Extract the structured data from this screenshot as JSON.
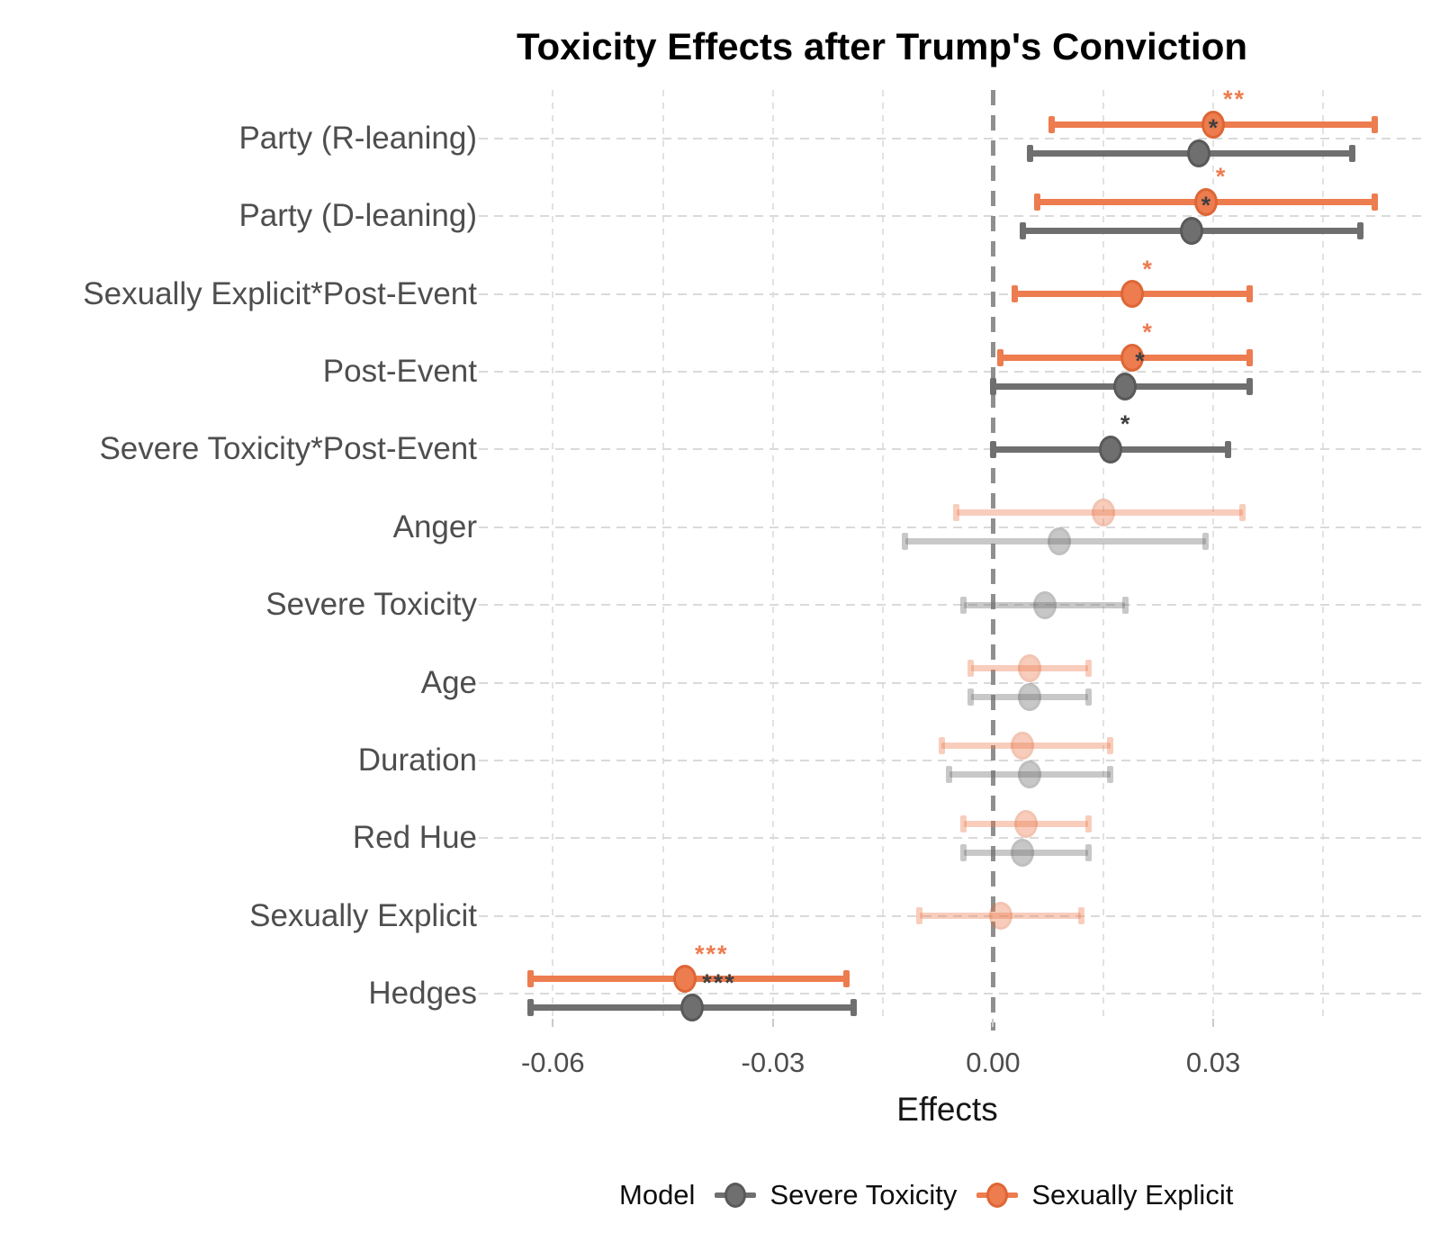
{
  "chart_data": {
    "type": "pointrange",
    "title": "Toxicity Effects after Trump's Conviction",
    "xlabel": "Effects",
    "xlim": [
      -0.0685,
      0.056
    ],
    "grid_values": [
      -0.06,
      -0.045,
      -0.03,
      -0.015,
      0.015,
      0.03,
      0.045
    ],
    "zero_line": 0.0,
    "x_ticks": [
      {
        "value": -0.06,
        "label": "-0.06"
      },
      {
        "value": -0.03,
        "label": "-0.03"
      },
      {
        "value": 0.0,
        "label": "0.00"
      },
      {
        "value": 0.03,
        "label": "0.03"
      }
    ],
    "models": {
      "Severe Toxicity": {
        "color": "#6f6f6f",
        "stroke": "#595959"
      },
      "Sexually Explicit": {
        "color": "#ed7c4f",
        "stroke": "#de6636"
      }
    },
    "faded_opacity": 0.38,
    "rows": [
      {
        "label": "Party (R-leaning)",
        "points": [
          {
            "model": "Sexually Explicit",
            "estimate": 0.03,
            "ci_low": 0.008,
            "ci_high": 0.052,
            "stars": "**",
            "faded": false
          },
          {
            "model": "Severe Toxicity",
            "estimate": 0.028,
            "ci_low": 0.005,
            "ci_high": 0.049,
            "stars": "*",
            "faded": false
          }
        ]
      },
      {
        "label": "Party (D-leaning)",
        "points": [
          {
            "model": "Sexually Explicit",
            "estimate": 0.029,
            "ci_low": 0.006,
            "ci_high": 0.052,
            "stars": "*",
            "faded": false
          },
          {
            "model": "Severe Toxicity",
            "estimate": 0.027,
            "ci_low": 0.004,
            "ci_high": 0.05,
            "stars": "*",
            "faded": false
          }
        ]
      },
      {
        "label": "Sexually Explicit*Post-Event",
        "points": [
          {
            "model": "Sexually Explicit",
            "estimate": 0.019,
            "ci_low": 0.003,
            "ci_high": 0.035,
            "stars": "*",
            "faded": false
          }
        ]
      },
      {
        "label": "Post-Event",
        "points": [
          {
            "model": "Sexually Explicit",
            "estimate": 0.019,
            "ci_low": 0.001,
            "ci_high": 0.035,
            "stars": "*",
            "faded": false
          },
          {
            "model": "Severe Toxicity",
            "estimate": 0.018,
            "ci_low": 0.0,
            "ci_high": 0.035,
            "stars": "*",
            "faded": false
          }
        ]
      },
      {
        "label": "Severe Toxicity*Post-Event",
        "points": [
          {
            "model": "Severe Toxicity",
            "estimate": 0.016,
            "ci_low": 0.0,
            "ci_high": 0.032,
            "stars": "*",
            "faded": false
          }
        ]
      },
      {
        "label": "Anger",
        "points": [
          {
            "model": "Sexually Explicit",
            "estimate": 0.015,
            "ci_low": -0.005,
            "ci_high": 0.034,
            "stars": "",
            "faded": true
          },
          {
            "model": "Severe Toxicity",
            "estimate": 0.009,
            "ci_low": -0.012,
            "ci_high": 0.029,
            "stars": "",
            "faded": true
          }
        ]
      },
      {
        "label": "Severe Toxicity",
        "points": [
          {
            "model": "Severe Toxicity",
            "estimate": 0.007,
            "ci_low": -0.004,
            "ci_high": 0.018,
            "stars": "",
            "faded": true
          }
        ]
      },
      {
        "label": "Age",
        "points": [
          {
            "model": "Sexually Explicit",
            "estimate": 0.005,
            "ci_low": -0.003,
            "ci_high": 0.013,
            "stars": "",
            "faded": true
          },
          {
            "model": "Severe Toxicity",
            "estimate": 0.005,
            "ci_low": -0.003,
            "ci_high": 0.013,
            "stars": "",
            "faded": true
          }
        ]
      },
      {
        "label": "Duration",
        "points": [
          {
            "model": "Sexually Explicit",
            "estimate": 0.004,
            "ci_low": -0.007,
            "ci_high": 0.016,
            "stars": "",
            "faded": true
          },
          {
            "model": "Severe Toxicity",
            "estimate": 0.005,
            "ci_low": -0.006,
            "ci_high": 0.016,
            "stars": "",
            "faded": true
          }
        ]
      },
      {
        "label": "Red Hue",
        "points": [
          {
            "model": "Sexually Explicit",
            "estimate": 0.0045,
            "ci_low": -0.004,
            "ci_high": 0.013,
            "stars": "",
            "faded": true
          },
          {
            "model": "Severe Toxicity",
            "estimate": 0.004,
            "ci_low": -0.004,
            "ci_high": 0.013,
            "stars": "",
            "faded": true
          }
        ]
      },
      {
        "label": "Sexually Explicit",
        "points": [
          {
            "model": "Sexually Explicit",
            "estimate": 0.001,
            "ci_low": -0.01,
            "ci_high": 0.012,
            "stars": "",
            "faded": true
          }
        ]
      },
      {
        "label": "Hedges",
        "points": [
          {
            "model": "Sexually Explicit",
            "estimate": -0.042,
            "ci_low": -0.063,
            "ci_high": -0.02,
            "stars": "***",
            "faded": false
          },
          {
            "model": "Severe Toxicity",
            "estimate": -0.041,
            "ci_low": -0.063,
            "ci_high": -0.019,
            "stars": "***",
            "faded": false
          }
        ]
      }
    ],
    "legend_position": "bottom",
    "grid": true
  },
  "legend": {
    "title": "Model",
    "items": [
      {
        "label": "Severe Toxicity",
        "color": "#6f6f6f",
        "stroke": "#595959"
      },
      {
        "label": "Sexually Explicit",
        "color": "#ed7c4f",
        "stroke": "#de6636"
      }
    ]
  }
}
